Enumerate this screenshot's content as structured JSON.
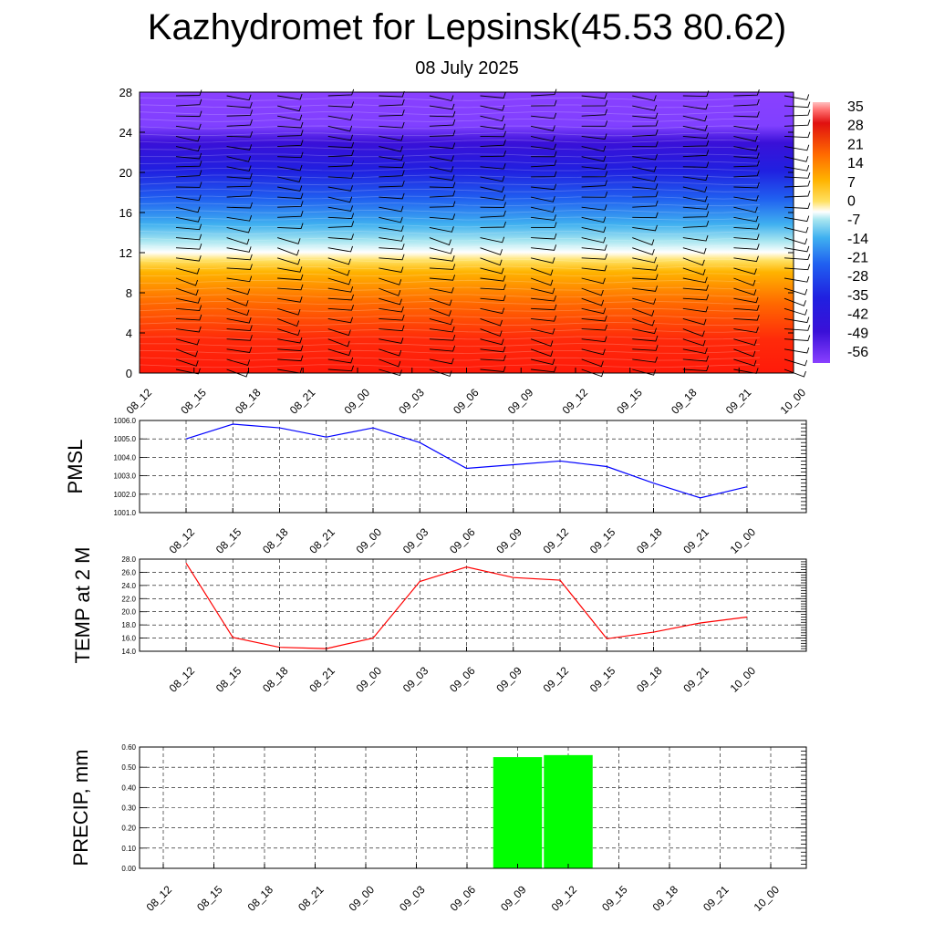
{
  "title": "Kazhydromet for Lepsinsk(45.53 80.62)",
  "subtitle": "08 July 2025",
  "time_labels": [
    "08_12",
    "08_15",
    "08_18",
    "08_21",
    "09_00",
    "09_03",
    "09_06",
    "09_09",
    "09_12",
    "09_15",
    "09_18",
    "09_21",
    "10_00"
  ],
  "chart_data": [
    {
      "type": "heatmap",
      "name": "temperature-cross-section",
      "x": [
        "08_12",
        "08_15",
        "08_18",
        "08_21",
        "09_00",
        "09_03",
        "09_06",
        "09_09",
        "09_12",
        "09_15",
        "09_18",
        "09_21",
        "10_00"
      ],
      "yticks": [
        0,
        4,
        8,
        12,
        16,
        20,
        24,
        28
      ],
      "ylim": [
        0,
        28
      ],
      "colorbar_labels": [
        "35",
        "28",
        "21",
        "14",
        "7",
        "0",
        "-7",
        "-14",
        "-21",
        "-28",
        "-35",
        "-42",
        "-49",
        "-56"
      ],
      "colorbar_range": [
        -63,
        42
      ],
      "annotations": "wind barbs overlaid"
    },
    {
      "type": "line",
      "ylabel": "PMSL",
      "x": [
        "08_12",
        "08_15",
        "08_18",
        "08_21",
        "09_00",
        "09_03",
        "09_06",
        "09_09",
        "09_12",
        "09_15",
        "09_18",
        "09_21",
        "10_00"
      ],
      "values": [
        1005.0,
        1005.8,
        1005.6,
        1005.1,
        1005.6,
        1004.8,
        1003.4,
        1003.6,
        1003.8,
        1003.5,
        1002.6,
        1001.8,
        1002.4
      ],
      "yticks": [
        "1001.0",
        "1002.0",
        "1003.0",
        "1004.0",
        "1005.0",
        "1006.0"
      ],
      "ylim": [
        1001.0,
        1006.0
      ],
      "color": "#0000ff",
      "grid": true
    },
    {
      "type": "line",
      "ylabel": "TEMP at 2 M",
      "x": [
        "08_12",
        "08_15",
        "08_18",
        "08_21",
        "09_00",
        "09_03",
        "09_06",
        "09_09",
        "09_12",
        "09_15",
        "09_18",
        "09_21",
        "10_00"
      ],
      "values": [
        27.4,
        16.1,
        14.6,
        14.4,
        16.0,
        24.6,
        26.8,
        25.2,
        24.8,
        15.9,
        16.9,
        18.3,
        19.2
      ],
      "yticks": [
        "14.0",
        "16.0",
        "18.0",
        "20.0",
        "22.0",
        "24.0",
        "26.0",
        "28.0"
      ],
      "ylim": [
        14.0,
        28.0
      ],
      "color": "#ff0000",
      "grid": true
    },
    {
      "type": "bar",
      "ylabel": "PRECIP, mm",
      "x": [
        "08_12",
        "08_15",
        "08_18",
        "08_21",
        "09_00",
        "09_03",
        "09_06",
        "09_09",
        "09_12",
        "09_15",
        "09_18",
        "09_21",
        "10_00"
      ],
      "values": [
        0,
        0,
        0,
        0,
        0,
        0,
        0,
        0.55,
        0.56,
        0,
        0,
        0,
        0
      ],
      "yticks": [
        "0.00",
        "0.10",
        "0.20",
        "0.30",
        "0.40",
        "0.50",
        "0.60"
      ],
      "ylim": [
        0,
        0.6
      ],
      "color": "#00ff00",
      "grid": true
    }
  ]
}
